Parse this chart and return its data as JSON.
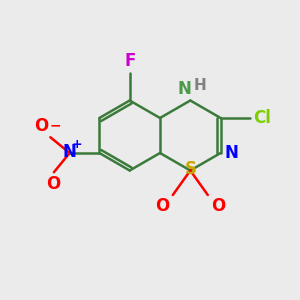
{
  "bg_color": "#ebebeb",
  "bond_color": "#3a7a3a",
  "bond_width": 1.8,
  "atom_colors": {
    "F": "#cc00cc",
    "Cl": "#7dce00",
    "N": "#0000ff",
    "NH_N": "#4a9a4a",
    "NH_H": "#808080",
    "S": "#c8a800",
    "O": "#ff0000",
    "NO2_N": "#0000ff",
    "NO2_O": "#ff0000",
    "C": "#3a7a3a"
  },
  "font_size": 12,
  "small_font_size": 10
}
